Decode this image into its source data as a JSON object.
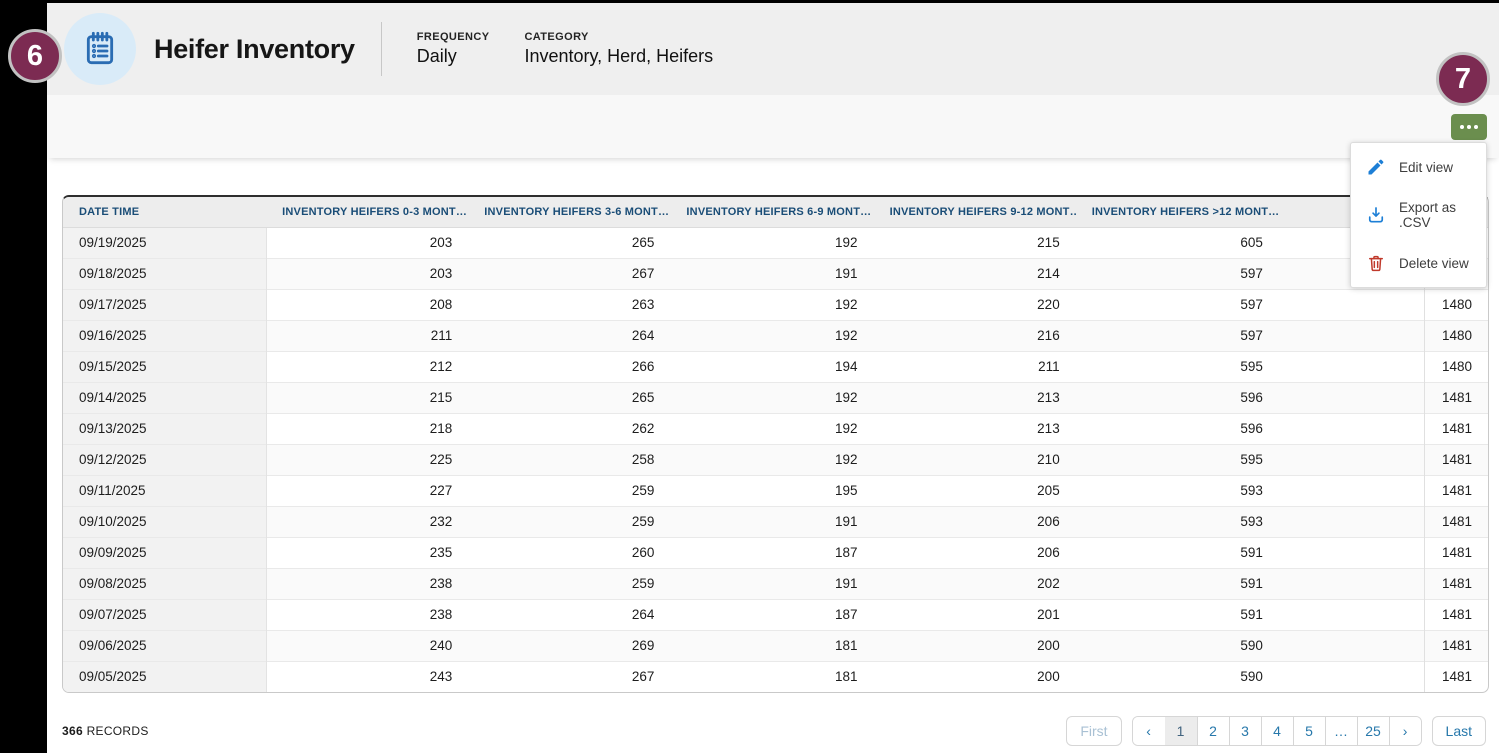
{
  "annotations": {
    "badge_six": "6",
    "badge_seven": "7"
  },
  "header": {
    "title": "Heifer Inventory",
    "frequency_label": "FREQUENCY",
    "frequency_value": "Daily",
    "category_label": "CATEGORY",
    "category_value": "Inventory, Herd, Heifers"
  },
  "menu": {
    "items": [
      {
        "icon": "pencil-icon",
        "label": "Edit view"
      },
      {
        "icon": "download-icon",
        "label": "Export as .CSV"
      },
      {
        "icon": "trash-icon",
        "label": "Delete view"
      }
    ]
  },
  "table": {
    "columns": [
      {
        "label": "DATE TIME"
      },
      {
        "label": "INVENTORY HEIFERS 0-3 MONT…"
      },
      {
        "label": "INVENTORY HEIFERS 3-6 MONT…"
      },
      {
        "label": "INVENTORY HEIFERS 6-9 MONT…"
      },
      {
        "label": "INVENTORY HEIFERS 9-12 MONT…"
      },
      {
        "label": "INVENTORY HEIFERS >12 MONT…"
      },
      {
        "label": ""
      },
      {
        "label": ""
      }
    ],
    "rows": [
      {
        "date": "09/19/2025",
        "values": [
          "203",
          "265",
          "192",
          "215",
          "605",
          "",
          ""
        ]
      },
      {
        "date": "09/18/2025",
        "values": [
          "203",
          "267",
          "191",
          "214",
          "597",
          "",
          ""
        ]
      },
      {
        "date": "09/17/2025",
        "values": [
          "208",
          "263",
          "192",
          "220",
          "597",
          "",
          "1480"
        ]
      },
      {
        "date": "09/16/2025",
        "values": [
          "211",
          "264",
          "192",
          "216",
          "597",
          "",
          "1480"
        ]
      },
      {
        "date": "09/15/2025",
        "values": [
          "212",
          "266",
          "194",
          "211",
          "595",
          "",
          "1480"
        ]
      },
      {
        "date": "09/14/2025",
        "values": [
          "215",
          "265",
          "192",
          "213",
          "596",
          "",
          "1481"
        ]
      },
      {
        "date": "09/13/2025",
        "values": [
          "218",
          "262",
          "192",
          "213",
          "596",
          "",
          "1481"
        ]
      },
      {
        "date": "09/12/2025",
        "values": [
          "225",
          "258",
          "192",
          "210",
          "595",
          "",
          "1481"
        ]
      },
      {
        "date": "09/11/2025",
        "values": [
          "227",
          "259",
          "195",
          "205",
          "593",
          "",
          "1481"
        ]
      },
      {
        "date": "09/10/2025",
        "values": [
          "232",
          "259",
          "191",
          "206",
          "593",
          "",
          "1481"
        ]
      },
      {
        "date": "09/09/2025",
        "values": [
          "235",
          "260",
          "187",
          "206",
          "591",
          "",
          "1481"
        ]
      },
      {
        "date": "09/08/2025",
        "values": [
          "238",
          "259",
          "191",
          "202",
          "591",
          "",
          "1481"
        ]
      },
      {
        "date": "09/07/2025",
        "values": [
          "238",
          "264",
          "187",
          "201",
          "591",
          "",
          "1481"
        ]
      },
      {
        "date": "09/06/2025",
        "values": [
          "240",
          "269",
          "181",
          "200",
          "590",
          "",
          "1481"
        ]
      },
      {
        "date": "09/05/2025",
        "values": [
          "243",
          "267",
          "181",
          "200",
          "590",
          "",
          "1481"
        ]
      }
    ]
  },
  "footer": {
    "records_count": "366",
    "records_label": "RECORDS"
  },
  "pagination": {
    "first": "First",
    "prev": "‹",
    "pages": [
      "1",
      "2",
      "3",
      "4",
      "5",
      "…",
      "25"
    ],
    "active_page": "1",
    "next": "›",
    "last": "Last"
  },
  "colors": {
    "accent_blue": "#2a6cb3",
    "table_header_navy": "#1a4d77",
    "badge_maroon": "#7c2b52",
    "menu_button_green": "#6b8e4e",
    "link_blue": "#2778ab",
    "delete_red": "#c0392b"
  }
}
